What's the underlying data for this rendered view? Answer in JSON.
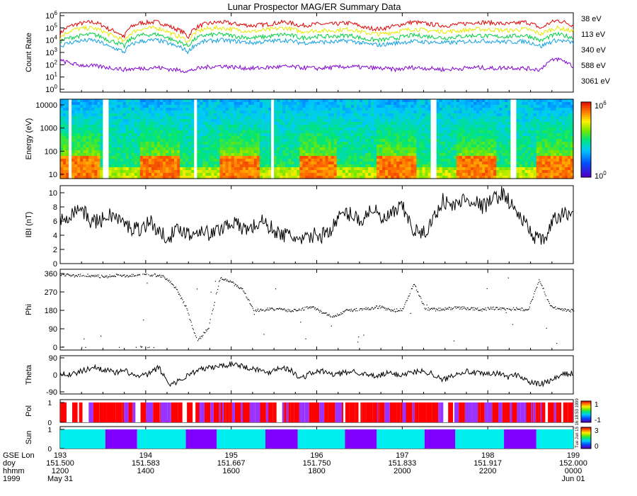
{
  "title": "Lunar Prospector MAG/ER Summary Data",
  "panels": {
    "count_rate": {
      "ylabel": "Count Rate",
      "ticks": [
        {
          "base": "10",
          "exp": "0"
        },
        {
          "base": "10",
          "exp": "1"
        },
        {
          "base": "10",
          "exp": "2"
        },
        {
          "base": "10",
          "exp": "3"
        },
        {
          "base": "10",
          "exp": "4"
        },
        {
          "base": "10",
          "exp": "5"
        },
        {
          "base": "10",
          "exp": "6"
        }
      ]
    },
    "energy": {
      "ylabel": "Energy (eV)",
      "ticks": [
        "10",
        "100",
        "1000",
        "10000"
      ],
      "colorbar": [
        {
          "base": "10",
          "exp": "6"
        },
        {
          "base": "10",
          "exp": "0"
        }
      ]
    },
    "b_mag": {
      "ylabel": "IBI (nT)",
      "ticks": [
        "0",
        "2",
        "4",
        "6",
        "8",
        "10"
      ]
    },
    "phi": {
      "ylabel": "Phi",
      "ticks": [
        "0",
        "90",
        "180",
        "270",
        "360"
      ]
    },
    "theta": {
      "ylabel": "Theta",
      "ticks": [
        "-90",
        "0",
        "90"
      ]
    },
    "pol": {
      "ylabel": "Pol",
      "ticks": [
        "0",
        "1"
      ],
      "colorbar": [
        "1",
        "-1"
      ],
      "stamp": "Tue Jun 15 16:18:53 1999"
    },
    "sun": {
      "ylabel": "Sun",
      "ticks": [
        "0",
        "1"
      ],
      "colorbar": [
        "3",
        "0"
      ]
    }
  },
  "bottom_axis": {
    "row_labels": [
      "GSE Lon",
      "doy",
      "hhmm",
      "1999"
    ],
    "ticks": [
      {
        "lon": "193",
        "doy": "151.500",
        "hhmm": "1200",
        "date": "May 31"
      },
      {
        "lon": "194",
        "doy": "151.583",
        "hhmm": "1400",
        "date": ""
      },
      {
        "lon": "195",
        "doy": "151.667",
        "hhmm": "1600",
        "date": ""
      },
      {
        "lon": "196",
        "doy": "151.750",
        "hhmm": "1800",
        "date": ""
      },
      {
        "lon": "197",
        "doy": "151.833",
        "hhmm": "2000",
        "date": ""
      },
      {
        "lon": "198",
        "doy": "151.917",
        "hhmm": "2200",
        "date": ""
      },
      {
        "lon": "199",
        "doy": "152.000",
        "hhmm": "0000",
        "date": "Jun 01"
      }
    ]
  },
  "colors": {
    "38": "#e00000",
    "113": "#e8e800",
    "340": "#00d040",
    "588": "#10a0e0",
    "3061": "#8000d0",
    "pol_pos": "#ff0000",
    "pol_neg": "#9933ff",
    "sun_day": "#00eeee",
    "sun_night": "#8000ff"
  },
  "chart_data": {
    "type": "line",
    "x_label": "doy",
    "x_range": [
      151.5,
      152.0
    ],
    "count_rate": {
      "yscale": "log",
      "ylim": [
        1,
        1000000
      ],
      "series": [
        {
          "name": "38 eV",
          "values": [
            30000,
            200000,
            300000,
            80000,
            15000,
            250000,
            300000,
            100000,
            15000,
            200000,
            300000,
            200000,
            150000,
            200000,
            300000,
            150000,
            200000,
            200000,
            250000,
            100000,
            80000,
            150000,
            300000,
            200000,
            150000,
            200000,
            300000,
            250000,
            200000,
            300000,
            80000,
            400000,
            150000
          ]
        },
        {
          "name": "113 eV",
          "values": [
            15000,
            80000,
            100000,
            30000,
            6000,
            80000,
            100000,
            30000,
            6000,
            80000,
            100000,
            70000,
            50000,
            70000,
            100000,
            50000,
            60000,
            60000,
            80000,
            40000,
            30000,
            50000,
            80000,
            60000,
            50000,
            60000,
            80000,
            70000,
            60000,
            80000,
            30000,
            100000,
            50000
          ]
        },
        {
          "name": "340 eV",
          "values": [
            8000,
            20000,
            30000,
            10000,
            3000,
            25000,
            30000,
            10000,
            3000,
            25000,
            30000,
            20000,
            15000,
            20000,
            30000,
            15000,
            20000,
            20000,
            25000,
            12000,
            10000,
            15000,
            25000,
            20000,
            15000,
            20000,
            25000,
            20000,
            20000,
            25000,
            8000,
            30000,
            15000
          ]
        },
        {
          "name": "588 eV",
          "values": [
            3000,
            8000,
            10000,
            3000,
            1000,
            8000,
            10000,
            4000,
            1000,
            8000,
            10000,
            8000,
            6000,
            8000,
            10000,
            6000,
            7000,
            7000,
            9000,
            5000,
            4000,
            6000,
            8000,
            7000,
            6000,
            7000,
            9000,
            8000,
            7000,
            8000,
            3000,
            10000,
            6000
          ]
        },
        {
          "name": "3061 eV",
          "values": [
            200,
            100,
            80,
            60,
            40,
            50,
            60,
            40,
            30,
            60,
            80,
            60,
            50,
            60,
            70,
            60,
            50,
            60,
            70,
            60,
            50,
            40,
            60,
            50,
            40,
            50,
            60,
            50,
            60,
            50,
            40,
            300,
            60
          ]
        }
      ]
    },
    "b_mag_nT": {
      "ylim": [
        0,
        11
      ],
      "values": [
        6,
        7,
        8,
        6,
        6,
        7,
        6,
        5,
        5,
        6,
        4,
        4,
        5,
        4,
        5,
        4,
        5,
        6,
        5,
        5,
        6,
        5,
        4,
        4,
        3,
        4,
        4,
        5,
        7,
        7,
        6,
        8,
        6,
        7,
        8,
        5,
        4,
        6,
        9,
        8,
        9,
        9,
        8,
        9,
        10,
        8,
        6,
        4,
        3,
        6,
        7,
        7
      ]
    },
    "phi_deg": {
      "ylim": [
        0,
        360
      ],
      "values": [
        360,
        350,
        355,
        350,
        345,
        355,
        350,
        360,
        355,
        350,
        300,
        200,
        30,
        100,
        340,
        320,
        280,
        180,
        185,
        190,
        180,
        185,
        200,
        170,
        150,
        180,
        185,
        190,
        200,
        180,
        185,
        310,
        190,
        185,
        190,
        195,
        190,
        185,
        195,
        185,
        190,
        185,
        330,
        200,
        185,
        180
      ]
    },
    "theta_deg": {
      "ylim": [
        -90,
        90
      ],
      "values": [
        10,
        0,
        20,
        40,
        30,
        10,
        20,
        -10,
        0,
        40,
        -50,
        -30,
        10,
        30,
        40,
        50,
        60,
        40,
        30,
        10,
        40,
        30,
        -20,
        10,
        20,
        0,
        10,
        20,
        0,
        -10,
        10,
        0,
        10,
        20,
        10,
        -30,
        0,
        20,
        10,
        0,
        10,
        -10,
        0,
        -40,
        -50,
        -30,
        0,
        10
      ]
    },
    "sun_state": [
      1,
      0,
      1,
      0,
      1,
      0,
      1,
      0,
      1,
      0,
      1,
      0,
      1
    ]
  }
}
